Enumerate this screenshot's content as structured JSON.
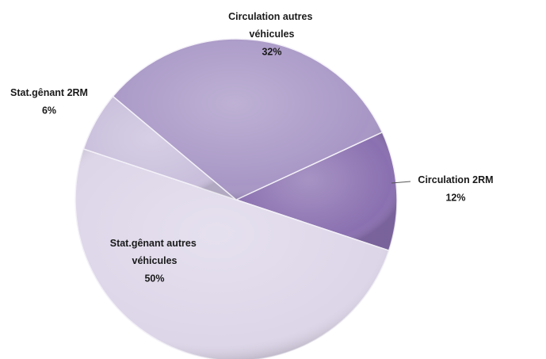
{
  "chart_data": {
    "type": "pie",
    "categories": [
      "Circulation 2RM",
      "Stat.gênant autres véhicules",
      "Stat.gênant 2RM",
      "Circulation autres véhicules"
    ],
    "values": [
      12,
      50,
      6,
      32
    ],
    "value_labels": [
      "12%",
      "50%",
      "6%",
      "32%"
    ],
    "colors": [
      "#8a70b0",
      "#ddd6e9",
      "#c9bfdc",
      "#a897c6"
    ]
  }
}
